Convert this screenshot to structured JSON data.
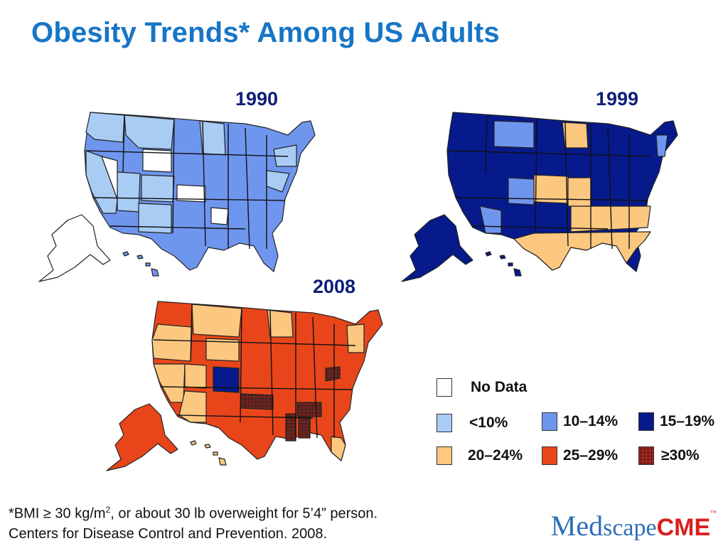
{
  "title": "Obesity Trends* Among US Adults",
  "maps": [
    {
      "year": "1990",
      "base_color": "#6f96ee",
      "accent_color": "#a9ccf5",
      "mark_color": "#ffffff",
      "alaska_color": "#ffffff"
    },
    {
      "year": "1999",
      "base_color": "#061a8c",
      "accent_color": "#fcc880",
      "mark_color": "#6f96ee",
      "alaska_color": "#061a8c"
    },
    {
      "year": "2008",
      "base_color": "#e8461a",
      "accent_color": "#fcc880",
      "mark_color": "#9a2620",
      "alaska_color": "#e8461a"
    }
  ],
  "legend": {
    "items": [
      {
        "label": "No Data",
        "color": "#ffffff"
      },
      {
        "label": "<10%",
        "color": "#a9ccf5"
      },
      {
        "label": "10–14%",
        "color": "#6f96ee"
      },
      {
        "label": "15–19%",
        "color": "#061a8c"
      },
      {
        "label": "20–24%",
        "color": "#fcc880"
      },
      {
        "label": "25–29%",
        "color": "#e8461a"
      },
      {
        "label": "≥30%",
        "color": "#9a2620"
      }
    ]
  },
  "footnote": {
    "line1_pre": "*BMI ≥ 30 kg/m",
    "line1_sup": "2",
    "line1_post": ", or about 30 lb overweight for 5’4” person.",
    "line2": "Centers for Disease Control and Prevention. 2008."
  },
  "logo": {
    "part1": "Med",
    "part2": "scape",
    "part3": "CME",
    "tm": "™"
  }
}
